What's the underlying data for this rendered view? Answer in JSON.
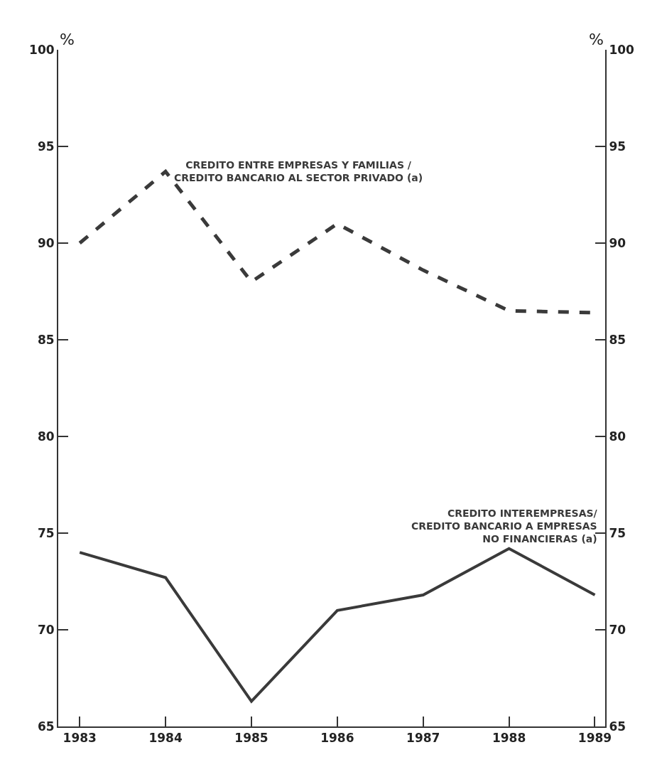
{
  "chart_data": {
    "type": "line",
    "x": [
      1983,
      1984,
      1985,
      1986,
      1987,
      1988,
      1989
    ],
    "xlim": [
      1982.75,
      1989.12
    ],
    "xticks": [
      1983,
      1984,
      1985,
      1986,
      1987,
      1988,
      1989
    ],
    "ylim": [
      65,
      100
    ],
    "yticks": [
      65,
      70,
      75,
      80,
      85,
      90,
      95,
      100
    ],
    "y2lim": [
      65,
      100
    ],
    "y2ticks": [
      65,
      70,
      75,
      80,
      85,
      90,
      95,
      100
    ],
    "ylabel": "%",
    "y2label": "%",
    "series": [
      {
        "name": "CREDITO ENTRE EMPRESAS Y FAMILIAS /\nCREDITO BANCARIO AL SECTOR PRIVADO (a)",
        "color": "#3a3a3a",
        "line_style": "dashed",
        "values": [
          90.0,
          93.7,
          88.0,
          91.0,
          88.6,
          86.5,
          86.4
        ]
      },
      {
        "name": "CREDITO INTEREMPRESAS/\nCREDITO BANCARIO A EMPRESAS\nNO FINANCIERAS (a)",
        "color": "#3a3a3a",
        "line_style": "solid",
        "values": [
          74.0,
          72.7,
          66.3,
          71.0,
          71.8,
          74.2,
          71.8
        ]
      }
    ],
    "legend": false,
    "marker": "none"
  }
}
